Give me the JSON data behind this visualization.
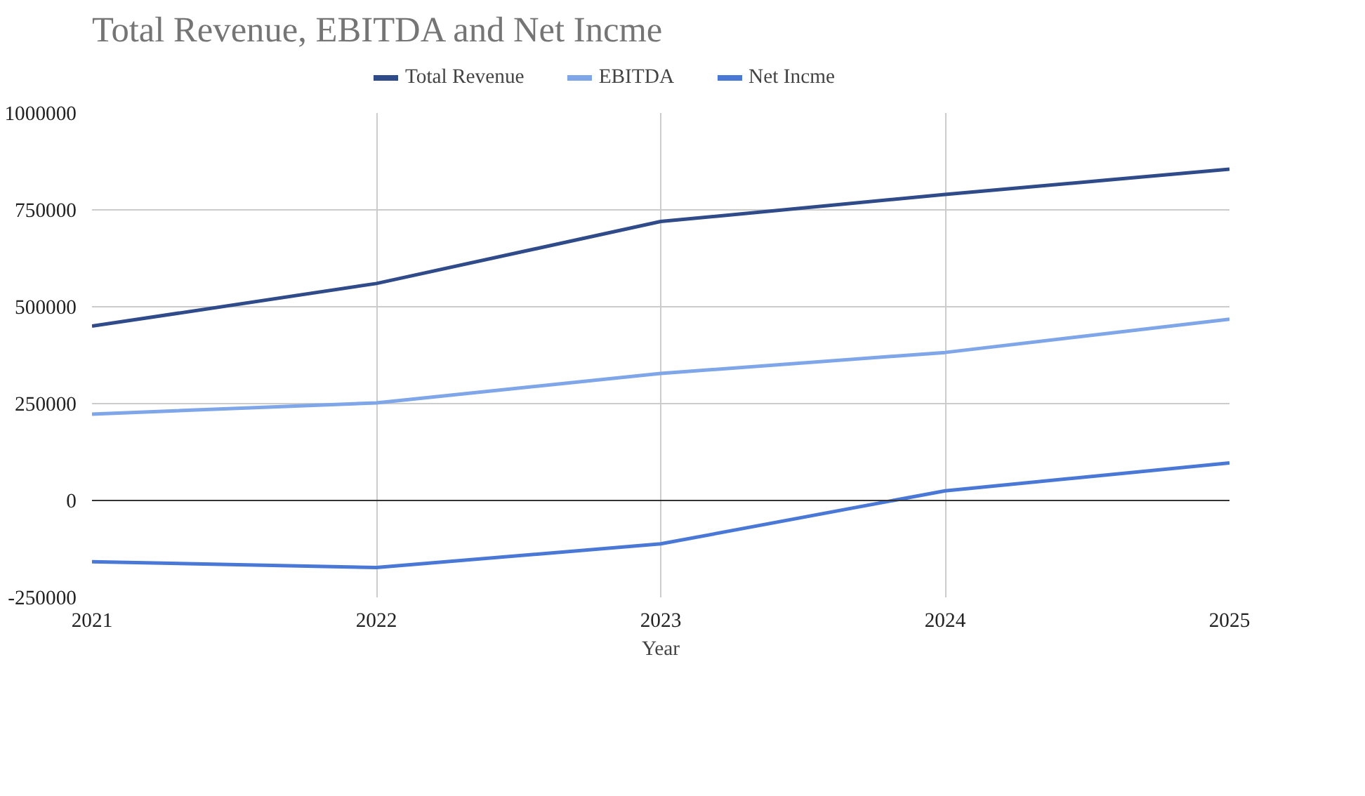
{
  "chart_data": {
    "type": "line",
    "title": "Total Revenue, EBITDA and Net Incme",
    "xlabel": "Year",
    "x": [
      2021,
      2022,
      2023,
      2024,
      2025
    ],
    "series": [
      {
        "name": "Total Revenue",
        "color": "#2f4b8a",
        "values": [
          450000,
          560000,
          720000,
          790000,
          855000
        ]
      },
      {
        "name": "EBITDA",
        "color": "#7fa6e8",
        "values": [
          223000,
          252000,
          328000,
          382000,
          468000
        ]
      },
      {
        "name": "Net Incme",
        "color": "#4a78d6",
        "values": [
          -158000,
          -173000,
          -112000,
          25000,
          97000
        ]
      }
    ],
    "xlim": [
      2021,
      2025
    ],
    "xticks": [
      2021,
      2022,
      2023,
      2024,
      2025
    ],
    "ylim": [
      -250000,
      1000000
    ],
    "yticks": [
      -250000,
      0,
      250000,
      500000,
      750000,
      1000000
    ],
    "ref_lines": [
      {
        "axis": "y",
        "value": 0,
        "color": "#333333"
      }
    ],
    "grid": true,
    "legend": "top",
    "marker": "none",
    "line_style": "solid"
  }
}
